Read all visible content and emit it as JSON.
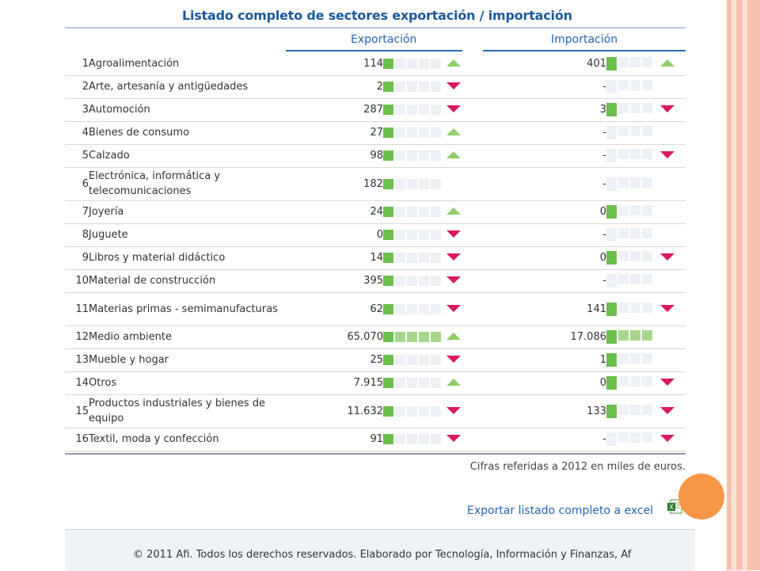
{
  "title": "Listado completo de sectores exportación / importación",
  "columns": {
    "export": "Exportación",
    "import": "Importación"
  },
  "rows": [
    {
      "n": "1",
      "name": "Agroalimentación",
      "ev": "114",
      "elevel": 1,
      "etrend": "up",
      "iv": "401",
      "ilevel": 1,
      "itrend": "up"
    },
    {
      "n": "2",
      "name": "Arte, artesanía y antigüedades",
      "ev": "2",
      "elevel": 1,
      "etrend": "down",
      "iv": "-",
      "ilevel": 0,
      "itrend": ""
    },
    {
      "n": "3",
      "name": "Automoción",
      "ev": "287",
      "elevel": 1,
      "etrend": "down",
      "iv": "3",
      "ilevel": 1,
      "itrend": "down"
    },
    {
      "n": "4",
      "name": "Bienes de consumo",
      "ev": "27",
      "elevel": 1,
      "etrend": "up",
      "iv": "-",
      "ilevel": 0,
      "itrend": ""
    },
    {
      "n": "5",
      "name": "Calzado",
      "ev": "98",
      "elevel": 1,
      "etrend": "up",
      "iv": "-",
      "ilevel": 0,
      "itrend": "down"
    },
    {
      "n": "6",
      "name": "Electrónica, informática y telecomunicaciones",
      "ev": "182",
      "elevel": 1,
      "etrend": "",
      "iv": "-",
      "ilevel": 0,
      "itrend": ""
    },
    {
      "n": "7",
      "name": "Joyería",
      "ev": "24",
      "elevel": 1,
      "etrend": "up",
      "iv": "0",
      "ilevel": 1,
      "itrend": ""
    },
    {
      "n": "8",
      "name": "Juguete",
      "ev": "0",
      "elevel": 1,
      "etrend": "down",
      "iv": "-",
      "ilevel": 0,
      "itrend": ""
    },
    {
      "n": "9",
      "name": "Libros y material didáctico",
      "ev": "14",
      "elevel": 1,
      "etrend": "down",
      "iv": "0",
      "ilevel": 1,
      "itrend": "down"
    },
    {
      "n": "10",
      "name": "Material de construcción",
      "ev": "395",
      "elevel": 1,
      "etrend": "down",
      "iv": "-",
      "ilevel": 0,
      "itrend": ""
    },
    {
      "n": "11",
      "name": "Materias primas - semimanufacturas",
      "ev": "62",
      "elevel": 1,
      "etrend": "down",
      "iv": "141",
      "ilevel": 1,
      "itrend": "down"
    },
    {
      "n": "12",
      "name": "Medio ambiente",
      "ev": "65.070",
      "elevel": 5,
      "etrend": "up",
      "iv": "17.086",
      "ilevel": 4,
      "itrend": ""
    },
    {
      "n": "13",
      "name": "Mueble y hogar",
      "ev": "25",
      "elevel": 1,
      "etrend": "down",
      "iv": "1",
      "ilevel": 1,
      "itrend": ""
    },
    {
      "n": "14",
      "name": "Otros",
      "ev": "7.915",
      "elevel": 1,
      "etrend": "up",
      "iv": "0",
      "ilevel": 1,
      "itrend": "down"
    },
    {
      "n": "15",
      "name": "Productos industriales y bienes de equipo",
      "ev": "11.632",
      "elevel": 1,
      "etrend": "down",
      "iv": "133",
      "ilevel": 1,
      "itrend": "down"
    },
    {
      "n": "16",
      "name": "Textil, moda y confección",
      "ev": "91",
      "elevel": 1,
      "etrend": "down",
      "iv": "-",
      "ilevel": 0,
      "itrend": "down"
    }
  ],
  "footnote": "Cifras referidas a 2012 en miles de euros.",
  "export_link": "Exportar listado completo a excel",
  "copyright": "© 2011 Afi. Todos los derechos reservados. Elaborado por Tecnología, Información y Finanzas, Af",
  "colors": {
    "accent": "#2466b0",
    "bar_on": "#6cbf4d",
    "up": "#8fce6b",
    "down": "#d81b60",
    "circle": "#f79646"
  },
  "icons": {
    "up": "triangle-up-icon",
    "down": "triangle-down-icon",
    "excel": "excel-icon"
  }
}
